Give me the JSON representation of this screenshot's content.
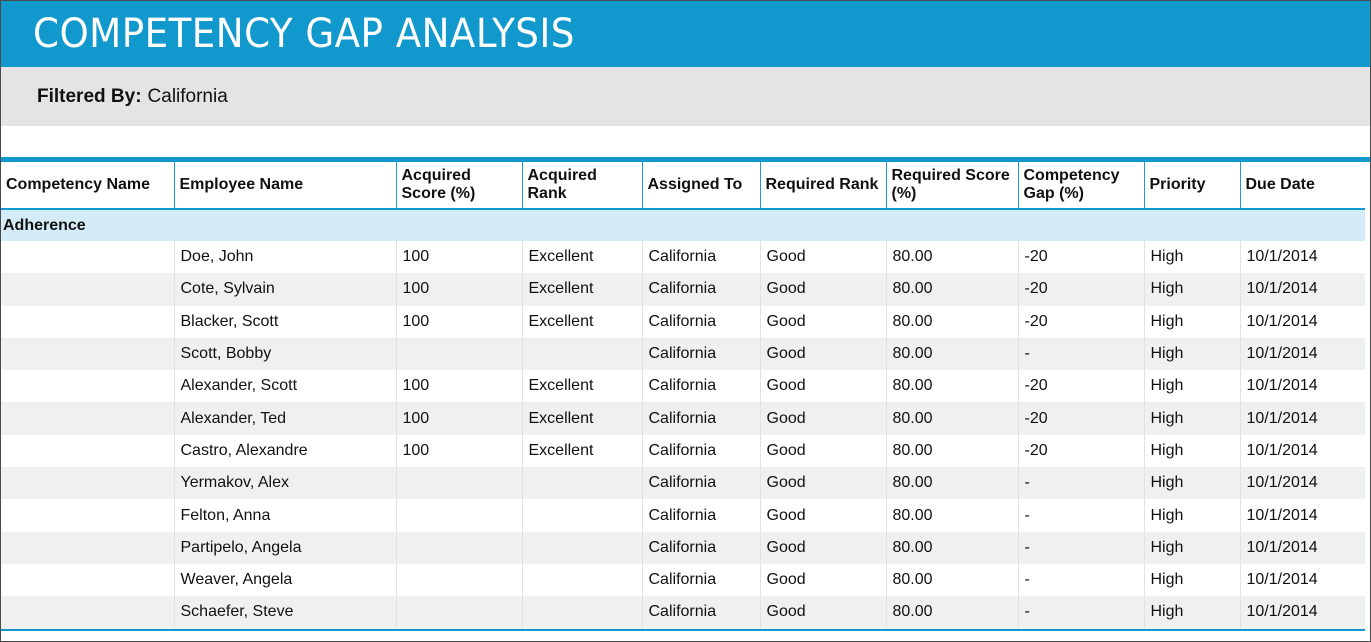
{
  "report": {
    "title": "COMPETENCY GAP ANALYSIS",
    "filter_label": "Filtered By:",
    "filter_value": "California"
  },
  "colors": {
    "header_blue": "#1198cc",
    "filter_gray": "#e4e4e4",
    "group_row": "#d4ecf8",
    "alt_row": "#eef0f1"
  },
  "table": {
    "columns": [
      "Competency Name",
      "Employee Name",
      "Acquired Score (%)",
      "Acquired Rank",
      "Assigned To",
      "Required Rank",
      "Required Score (%)",
      "Competency Gap (%)",
      "Priority",
      "Due Date"
    ],
    "group_name": "Adherence",
    "rows": [
      [
        "",
        "Doe, John",
        "100",
        "Excellent",
        "California",
        "Good",
        "80.00",
        "-20",
        "High",
        "10/1/2014"
      ],
      [
        "",
        "Cote, Sylvain",
        "100",
        "Excellent",
        "California",
        "Good",
        "80.00",
        "-20",
        "High",
        "10/1/2014"
      ],
      [
        "",
        "Blacker, Scott",
        "100",
        "Excellent",
        "California",
        "Good",
        "80.00",
        "-20",
        "High",
        "10/1/2014"
      ],
      [
        "",
        "Scott, Bobby",
        "",
        "",
        "California",
        "Good",
        "80.00",
        "-",
        "High",
        "10/1/2014"
      ],
      [
        "",
        "Alexander, Scott",
        "100",
        "Excellent",
        "California",
        "Good",
        "80.00",
        "-20",
        "High",
        "10/1/2014"
      ],
      [
        "",
        "Alexander, Ted",
        "100",
        "Excellent",
        "California",
        "Good",
        "80.00",
        "-20",
        "High",
        "10/1/2014"
      ],
      [
        "",
        "Castro, Alexandre",
        "100",
        "Excellent",
        "California",
        "Good",
        "80.00",
        "-20",
        "High",
        "10/1/2014"
      ],
      [
        "",
        "Yermakov, Alex",
        "",
        "",
        "California",
        "Good",
        "80.00",
        "-",
        "High",
        "10/1/2014"
      ],
      [
        "",
        "Felton, Anna",
        "",
        "",
        "California",
        "Good",
        "80.00",
        "-",
        "High",
        "10/1/2014"
      ],
      [
        "",
        "Partipelo, Angela",
        "",
        "",
        "California",
        "Good",
        "80.00",
        "-",
        "High",
        "10/1/2014"
      ],
      [
        "",
        "Weaver, Angela",
        "",
        "",
        "California",
        "Good",
        "80.00",
        "-",
        "High",
        "10/1/2014"
      ],
      [
        "",
        "Schaefer, Steve",
        "",
        "",
        "California",
        "Good",
        "80.00",
        "-",
        "High",
        "10/1/2014"
      ]
    ]
  }
}
